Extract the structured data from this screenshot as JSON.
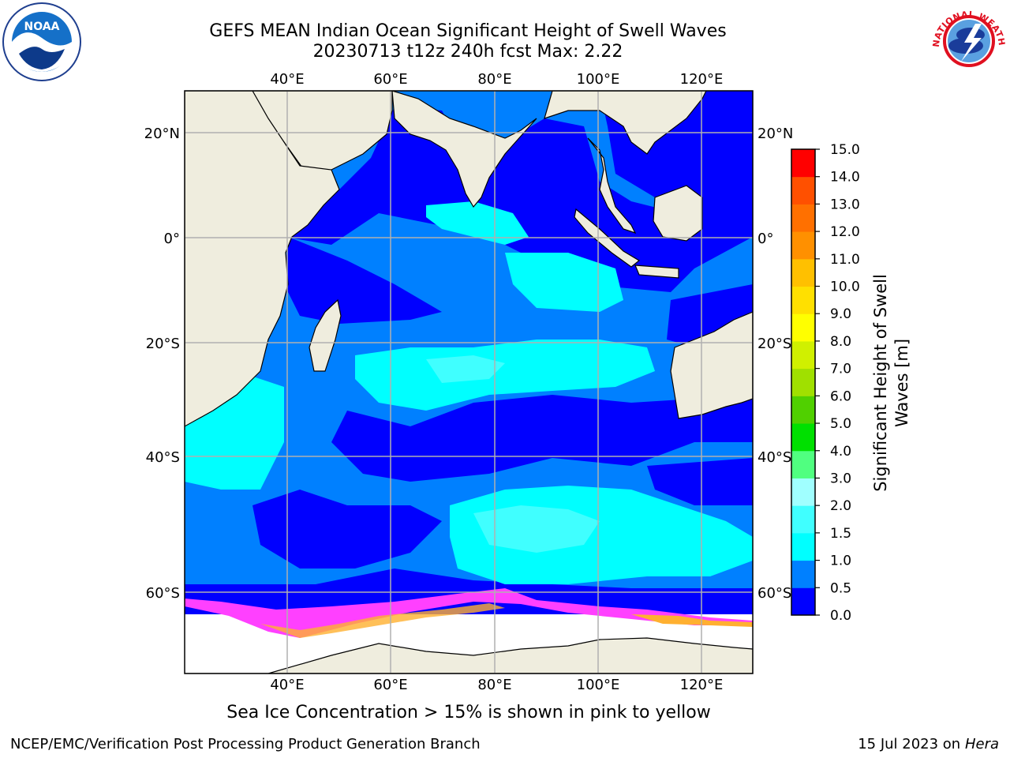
{
  "header": {
    "title_line1": "GEFS MEAN Indian Ocean Significant Height of Swell Waves",
    "title_line2": "20230713 t12z 240h fcst   Max: 2.22"
  },
  "map": {
    "top_lon_labels": [
      "40°E",
      "60°E",
      "80°E",
      "100°E",
      "120°E"
    ],
    "bottom_lon_labels": [
      "40°E",
      "60°E",
      "80°E",
      "100°E",
      "120°E"
    ],
    "left_lat_labels": [
      "20°N",
      "0°",
      "20°S",
      "40°S",
      "60°S"
    ],
    "right_lat_labels": [
      "20°N",
      "0°",
      "20°S",
      "40°S",
      "60°S"
    ]
  },
  "colorbar": {
    "label_line1": "Significant Height of Swell",
    "label_line2": "Waves [m]",
    "ticks": [
      "0.0",
      "0.5",
      "1.0",
      "1.5",
      "2.0",
      "3.0",
      "4.0",
      "5.0",
      "6.0",
      "7.0",
      "8.0",
      "9.0",
      "10.0",
      "11.0",
      "12.0",
      "13.0",
      "14.0",
      "15.0"
    ],
    "colors": [
      "#0000ff",
      "#0080ff",
      "#00ffff",
      "#40ffff",
      "#a0ffff",
      "#50ff80",
      "#00e000",
      "#50d000",
      "#a0e000",
      "#d0f000",
      "#ffff00",
      "#ffe000",
      "#ffc000",
      "#ff9000",
      "#ff7000",
      "#ff5000",
      "#ff0000"
    ]
  },
  "caption": "Sea Ice Concentration > 15% is shown in pink to yellow",
  "footer": {
    "left": "NCEP/EMC/Verification Post Processing Product Generation Branch",
    "right_prefix": "15 Jul 2023 on ",
    "right_host": "Hera"
  },
  "logos": {
    "noaa_text": "NOAA",
    "nws_text": "NATIONAL WEATHER SERVICE"
  },
  "colors": {
    "land": "#efedde",
    "sea_ice": "#ffffff",
    "grid": "#b0b0b0"
  }
}
